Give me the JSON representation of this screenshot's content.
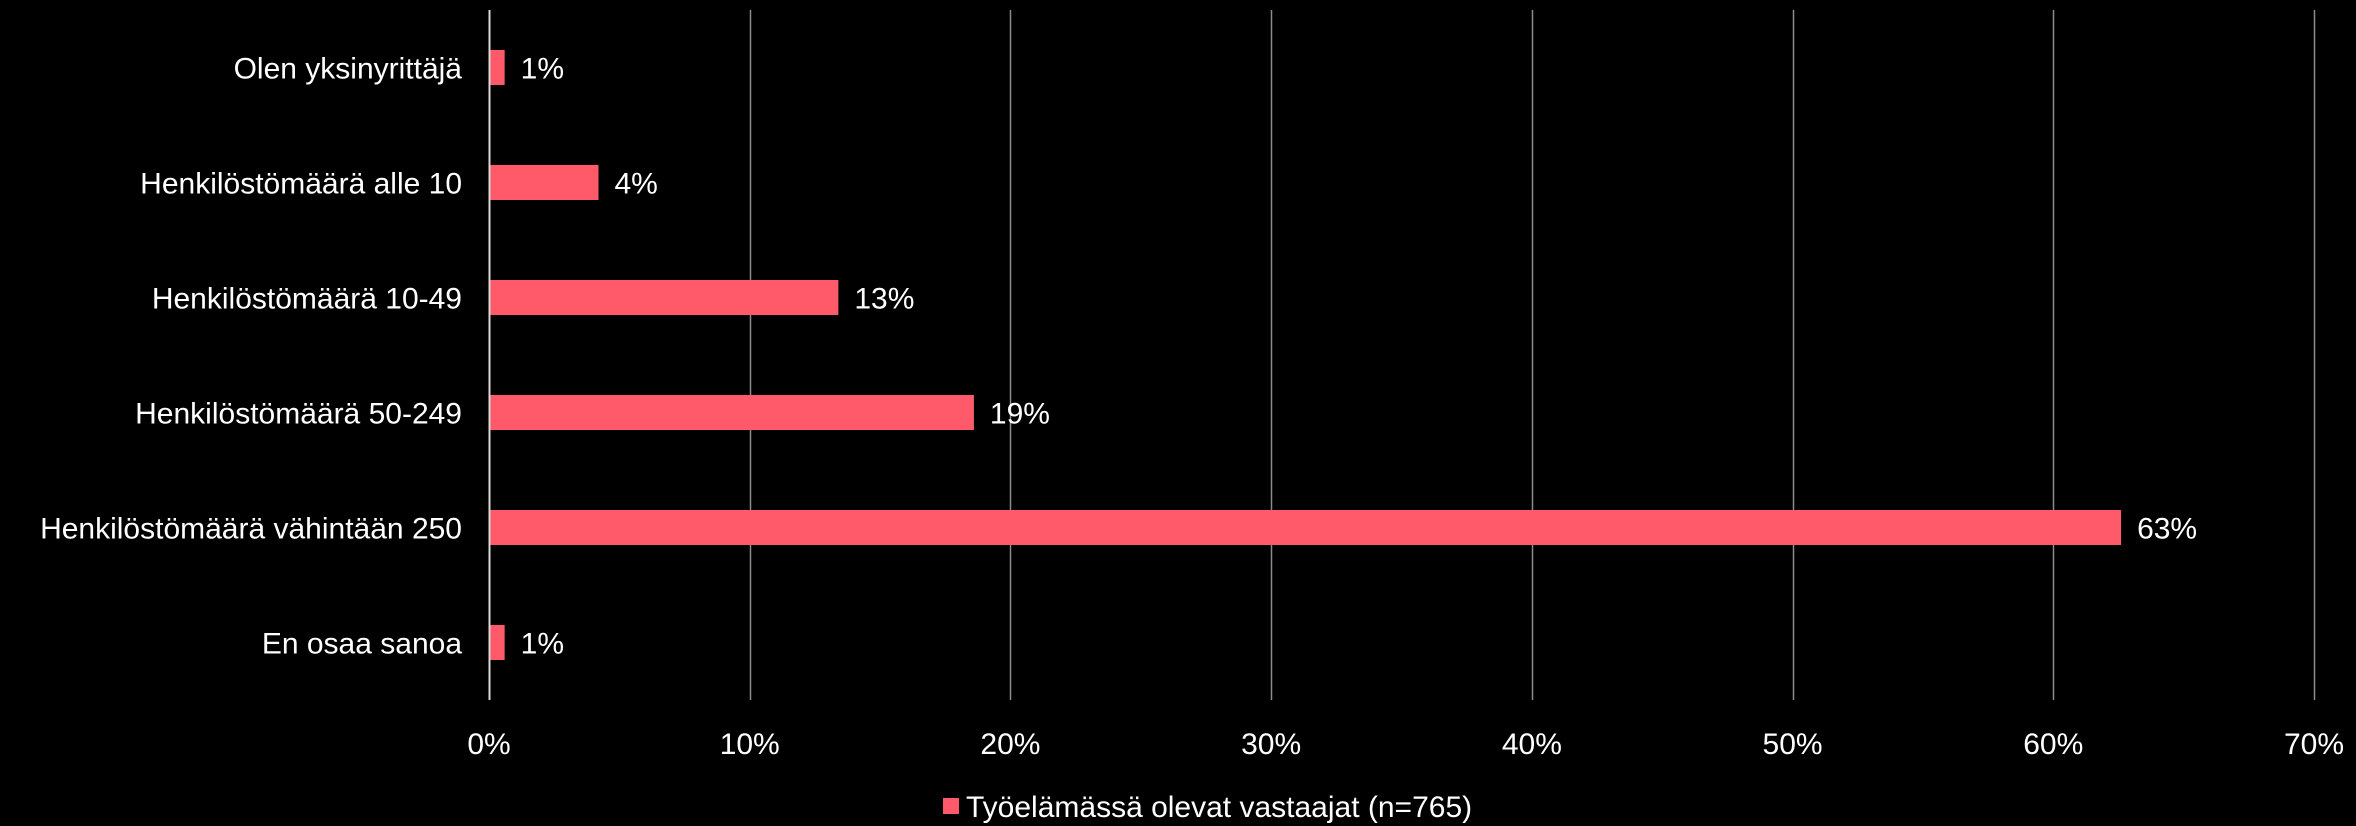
{
  "chart_data": {
    "type": "bar",
    "orientation": "horizontal",
    "title": "",
    "xlabel": "",
    "ylabel": "",
    "categories": [
      "Olen yksinyrittäjä",
      "Henkilöstömäärä alle 10",
      "Henkilöstömäärä 10-49",
      "Henkilöstömäärä 50-249",
      "Henkilöstömäärä vähintään 250",
      "En osaa sanoa"
    ],
    "series": [
      {
        "name": "Työelämässä olevat vastaajat (n=765)",
        "values": [
          0.6,
          4.2,
          13.4,
          18.6,
          62.6,
          0.6
        ],
        "labels": [
          "1%",
          "4%",
          "13%",
          "19%",
          "63%",
          "1%"
        ],
        "color": "#ff5a69"
      }
    ],
    "xlim": [
      0,
      70
    ],
    "xticks": [
      0,
      10,
      20,
      30,
      40,
      50,
      60,
      70
    ],
    "xtick_labels": [
      "0%",
      "10%",
      "20%",
      "30%",
      "40%",
      "50%",
      "60%",
      "70%"
    ],
    "grid": "vertical",
    "legend_position": "bottom",
    "background": "#000000",
    "gridline_color": "#8c8c8c",
    "axis_color": "#d9d9d9",
    "text_color": "#ffffff"
  }
}
